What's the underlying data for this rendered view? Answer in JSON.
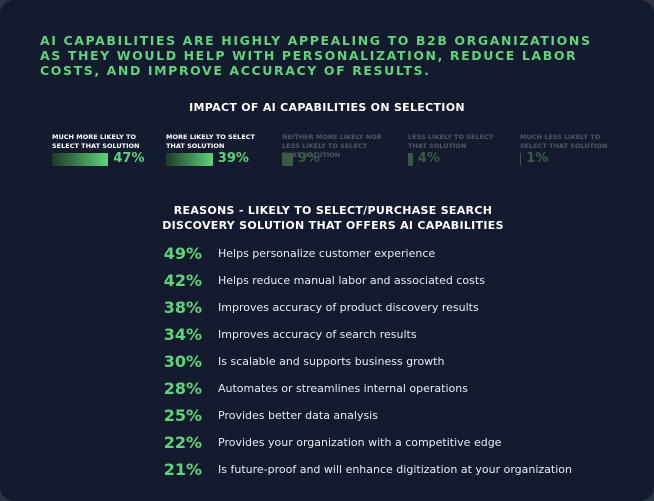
{
  "headline": "AI CAPABILITIES ARE HIGHLY APPEALING TO B2B ORGANIZATIONS AS THEY WOULD HELP WITH PERSONALIZATION, REDUCE LABOR COSTS, AND IMPROVE ACCURACY OF RESULTS.",
  "chart_data": [
    {
      "type": "bar",
      "title": "IMPACT OF AI CAPABILITIES ON SELECTION",
      "categories": [
        "MUCH MORE LIKELY TO SELECT THAT SOLUTION",
        "MORE LIKELY TO SELECT THAT SOLUTION",
        "NEITHER MORE LIKELY NOR LESS LIKELY TO SELECT THAT SOLUTION",
        "LESS LIKELY TO SELECT THAT SOLUTION",
        "MUCH LESS LIKELY TO SELECT THAT SOLUTION"
      ],
      "values": [
        47,
        39,
        9,
        4,
        1
      ],
      "value_labels": [
        "47%",
        "39%",
        "9%",
        "4%",
        "1%"
      ],
      "colors": [
        "#5fd47a",
        "#5fd47a",
        "#3a5a47",
        "#3a5a47",
        "#3a5a47"
      ]
    },
    {
      "type": "ranked-list",
      "title": "REASONS - LIKELY TO SELECT/PURCHASE SEARCH DISCOVERY SOLUTION THAT OFFERS AI CAPABILITIES",
      "categories": [
        "Helps personalize customer experience",
        "Helps reduce manual labor and associated costs",
        "Improves accuracy of product discovery results",
        "Improves accuracy of search results",
        "Is scalable and supports business growth",
        "Automates or streamlines internal operations",
        "Provides better data analysis",
        "Provides your organization with a competitive edge",
        "Is future-proof and will enhance digitization at your organization"
      ],
      "values": [
        49,
        42,
        38,
        34,
        30,
        28,
        25,
        22,
        21
      ],
      "value_labels": [
        "49%",
        "42%",
        "38%",
        "34%",
        "30%",
        "28%",
        "25%",
        "22%",
        "21%"
      ],
      "color": "#5fd47a"
    }
  ]
}
